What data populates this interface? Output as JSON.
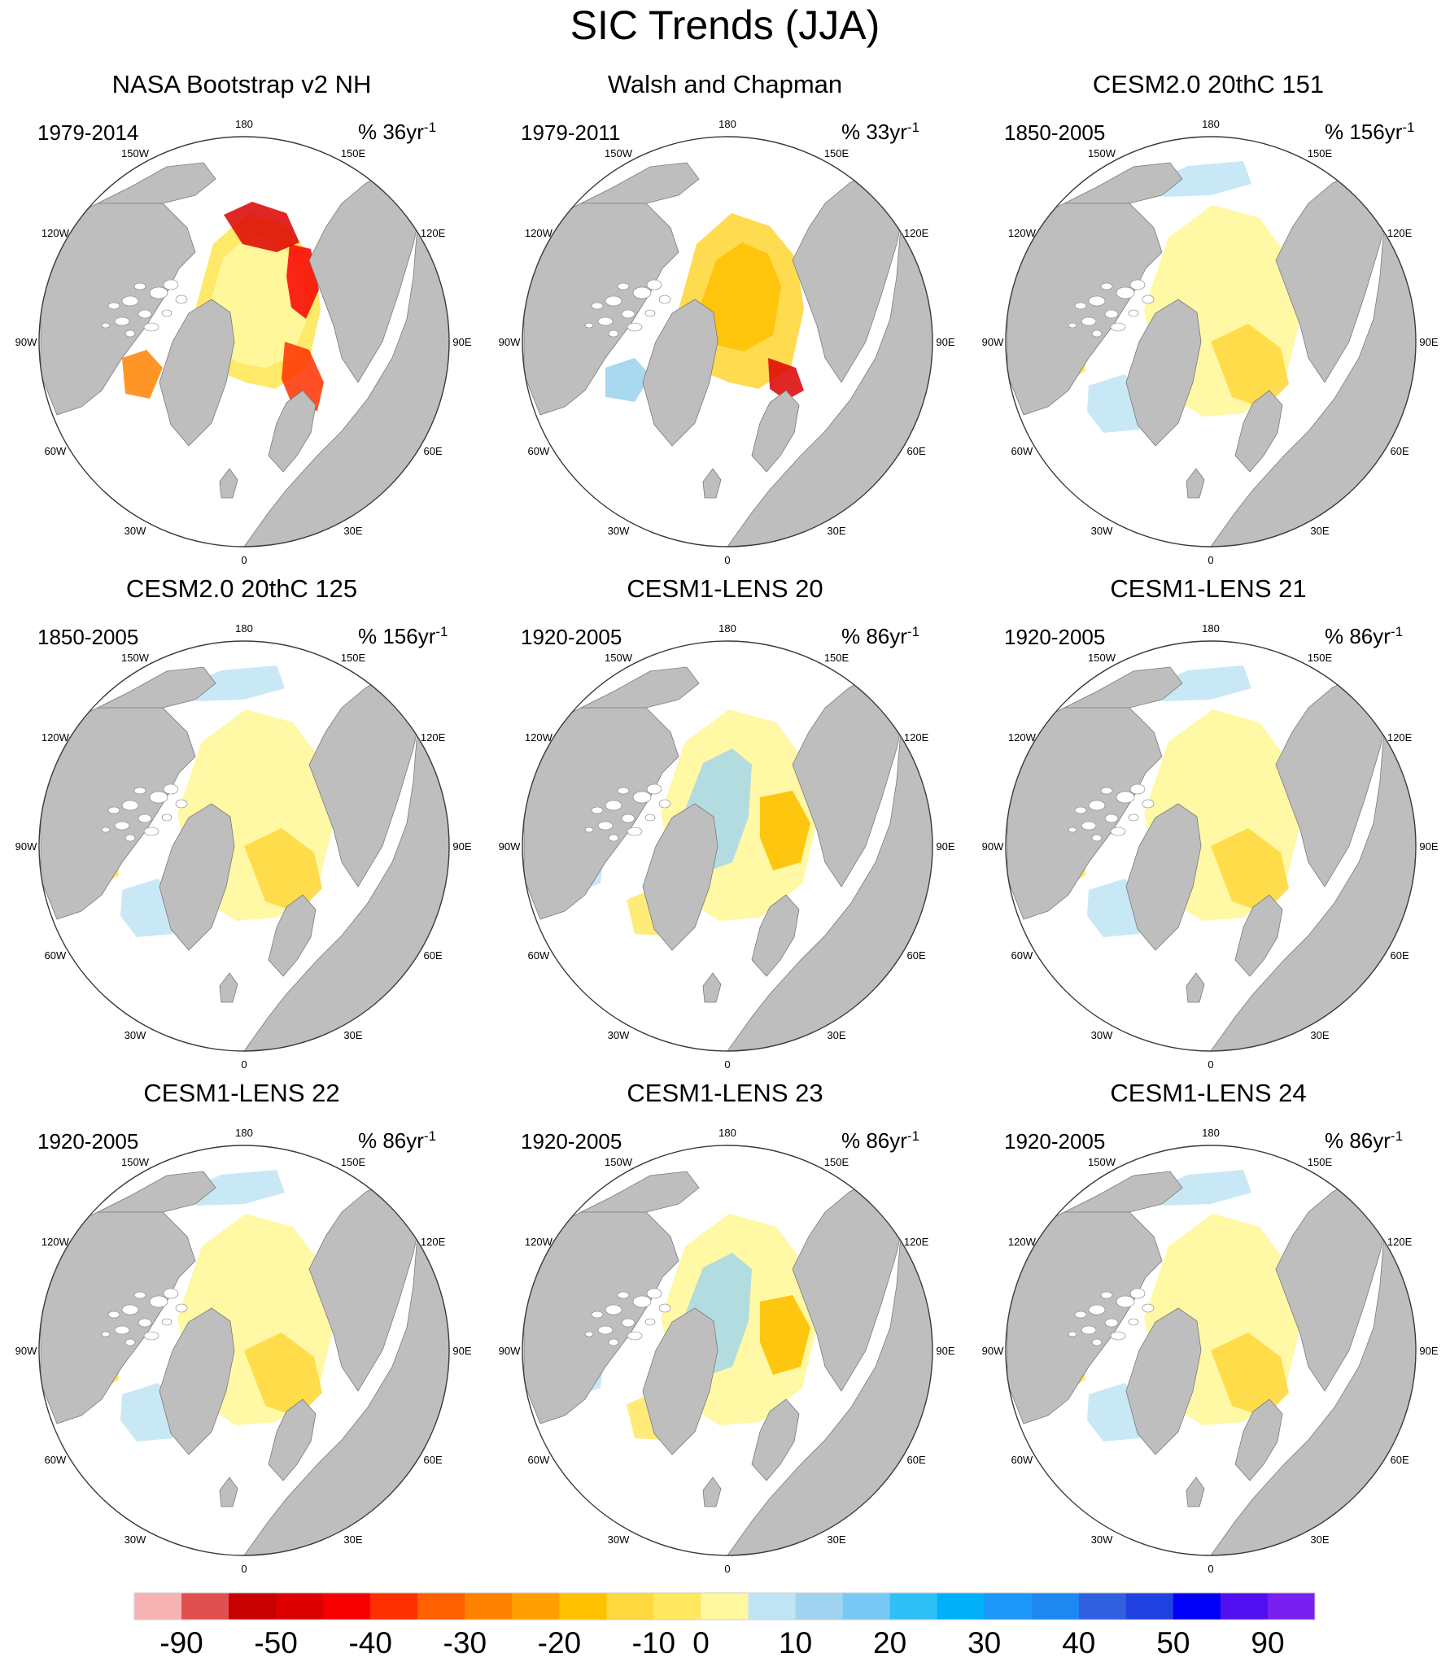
{
  "figure": {
    "title": "SIC Trends (JJA)"
  },
  "panels": [
    {
      "title": "NASA Bootstrap v2 NH",
      "period": "1979-2014",
      "units_prefix": "% 36yr",
      "units_exp": "-1",
      "pattern": "obs-bootstrap"
    },
    {
      "title": "Walsh and Chapman",
      "period": "1979-2011",
      "units_prefix": "% 33yr",
      "units_exp": "-1",
      "pattern": "obs-walsh"
    },
    {
      "title": "CESM2.0 20thC 151",
      "period": "1850-2005",
      "units_prefix": "% 156yr",
      "units_exp": "-1",
      "pattern": "model-weak"
    },
    {
      "title": "CESM2.0 20thC 125",
      "period": "1850-2005",
      "units_prefix": "% 156yr",
      "units_exp": "-1",
      "pattern": "model-weak"
    },
    {
      "title": "CESM1-LENS 20",
      "period": "1920-2005",
      "units_prefix": "% 86yr",
      "units_exp": "-1",
      "pattern": "model-mixed"
    },
    {
      "title": "CESM1-LENS 21",
      "period": "1920-2005",
      "units_prefix": "% 86yr",
      "units_exp": "-1",
      "pattern": "model-weak"
    },
    {
      "title": "CESM1-LENS 22",
      "period": "1920-2005",
      "units_prefix": "% 86yr",
      "units_exp": "-1",
      "pattern": "model-weak"
    },
    {
      "title": "CESM1-LENS 23",
      "period": "1920-2005",
      "units_prefix": "% 86yr",
      "units_exp": "-1",
      "pattern": "model-mixed"
    },
    {
      "title": "CESM1-LENS 24",
      "period": "1920-2005",
      "units_prefix": "% 86yr",
      "units_exp": "-1",
      "pattern": "model-weak"
    }
  ],
  "longitude_labels": [
    "180",
    "150E",
    "120E",
    "90E",
    "60E",
    "30E",
    "0",
    "30W",
    "60W",
    "90W",
    "120W",
    "150W"
  ],
  "colorbar": {
    "tick_labels": [
      "-90",
      "-50",
      "-40",
      "-30",
      "-20",
      "-10",
      "0",
      "10",
      "20",
      "30",
      "40",
      "50",
      "90"
    ],
    "colors": [
      "#f8b4b4",
      "#e05050",
      "#c80000",
      "#dc0000",
      "#f80000",
      "#ff3000",
      "#ff6000",
      "#ff8200",
      "#ffa000",
      "#ffc000",
      "#ffd840",
      "#ffe860",
      "#fff8a0",
      "#c0e4f4",
      "#a0d4f0",
      "#78c8f4",
      "#30c0f8",
      "#00b0f8",
      "#1e98f8",
      "#1e88f0",
      "#3060e0",
      "#2040e0",
      "#0000f8",
      "#5010f0",
      "#7820f0"
    ]
  },
  "map_colors": {
    "land": "#bebebe",
    "ocean": "#ffffff"
  }
}
